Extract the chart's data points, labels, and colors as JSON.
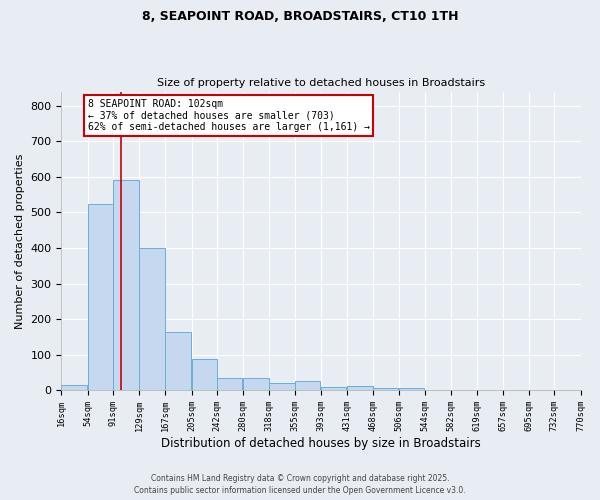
{
  "title1": "8, SEAPOINT ROAD, BROADSTAIRS, CT10 1TH",
  "title2": "Size of property relative to detached houses in Broadstairs",
  "xlabel": "Distribution of detached houses by size in Broadstairs",
  "ylabel": "Number of detached properties",
  "bin_labels": [
    "16sqm",
    "54sqm",
    "91sqm",
    "129sqm",
    "167sqm",
    "205sqm",
    "242sqm",
    "280sqm",
    "318sqm",
    "355sqm",
    "393sqm",
    "431sqm",
    "468sqm",
    "506sqm",
    "544sqm",
    "582sqm",
    "619sqm",
    "657sqm",
    "695sqm",
    "732sqm",
    "770sqm"
  ],
  "bar_heights": [
    15,
    525,
    590,
    400,
    165,
    88,
    33,
    33,
    20,
    25,
    10,
    13,
    5,
    5,
    0,
    0,
    0,
    0,
    0,
    0
  ],
  "bar_color": "#c5d8ef",
  "bar_edgecolor": "#6aaed6",
  "vline_x": 102,
  "vline_color": "#cc0000",
  "annotation_text": "8 SEAPOINT ROAD: 102sqm\n← 37% of detached houses are smaller (703)\n62% of semi-detached houses are larger (1,161) →",
  "annotation_box_facecolor": "#ffffff",
  "annotation_box_edgecolor": "#cc0000",
  "ylim": [
    0,
    840
  ],
  "yticks": [
    0,
    100,
    200,
    300,
    400,
    500,
    600,
    700,
    800
  ],
  "footer1": "Contains HM Land Registry data © Crown copyright and database right 2025.",
  "footer2": "Contains public sector information licensed under the Open Government Licence v3.0.",
  "background_color": "#e8edf4",
  "grid_color": "#ffffff",
  "bin_starts": [
    16,
    54,
    91,
    129,
    167,
    205,
    242,
    280,
    318,
    355,
    393,
    431,
    468,
    506,
    544,
    582,
    619,
    657,
    695,
    732
  ],
  "bin_width": 37,
  "xlim_left": 16,
  "xlim_right": 770
}
